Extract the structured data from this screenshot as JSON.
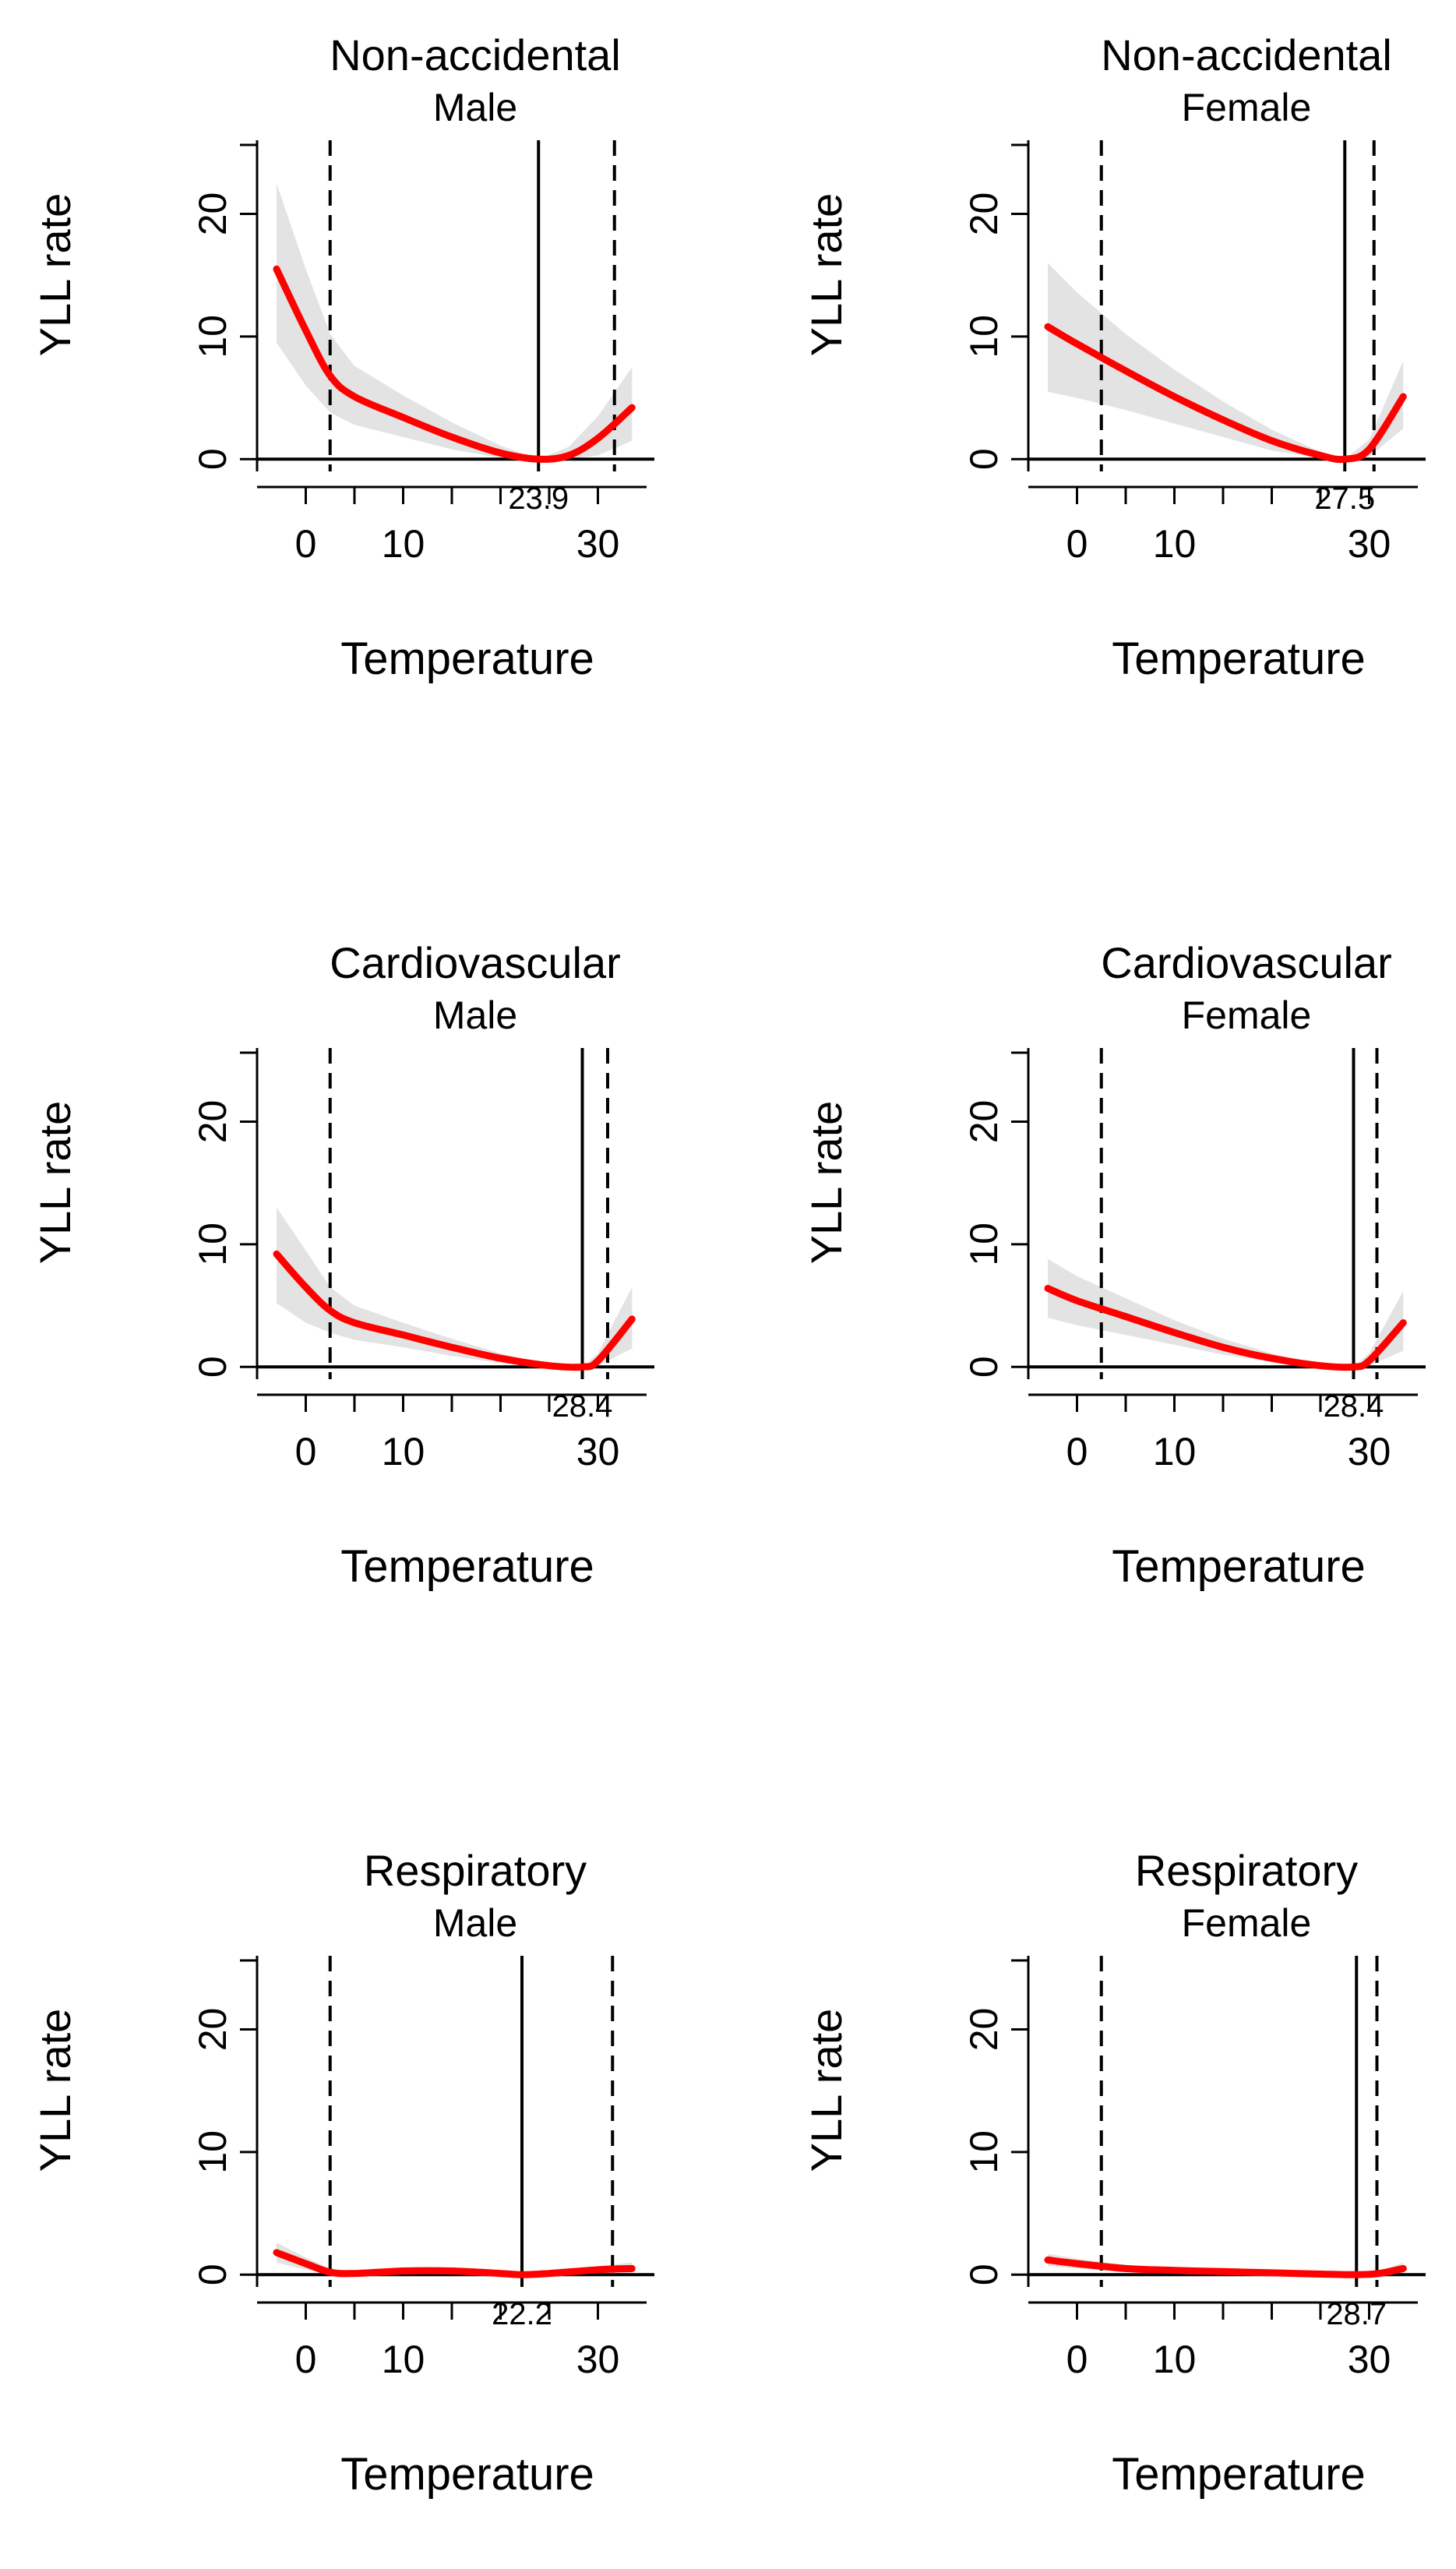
{
  "chart_data": [
    {
      "type": "line",
      "title": "Non-accidental",
      "subtitle": "Male",
      "xlabel": "Temperature",
      "ylabel": "YLL rate",
      "xticks": [
        0,
        10,
        30
      ],
      "yticks": [
        0,
        10,
        20
      ],
      "xlim": [
        -5,
        35
      ],
      "ylim": [
        -1,
        26
      ],
      "mmt": 23.9,
      "mmt_label": "23.9",
      "cutoffs": [
        2.5,
        31.7
      ],
      "curve": {
        "x": [
          -3,
          0,
          2.5,
          5,
          10,
          15,
          20,
          23.9,
          27,
          30,
          33.5
        ],
        "y": [
          15.5,
          10.5,
          6.8,
          5.1,
          3.4,
          1.8,
          0.5,
          0,
          0.3,
          1.7,
          4.2
        ]
      },
      "ci_upper": [
        22.5,
        15.5,
        10.2,
        7.6,
        5.2,
        3.0,
        1.1,
        0,
        1.0,
        3.5,
        7.5
      ],
      "ci_lower": [
        9.5,
        6.0,
        3.8,
        2.8,
        1.8,
        0.8,
        0.1,
        0,
        0.0,
        0.3,
        1.5
      ]
    },
    {
      "type": "line",
      "title": "Non-accidental",
      "subtitle": "Female",
      "xlabel": "Temperature",
      "ylabel": "YLL rate",
      "xticks": [
        0,
        10,
        30
      ],
      "yticks": [
        0,
        10,
        20
      ],
      "xlim": [
        -5,
        35
      ],
      "ylim": [
        -1,
        26
      ],
      "mmt": 27.5,
      "mmt_label": "27.5",
      "cutoffs": [
        2.5,
        30.5
      ],
      "curve": {
        "x": [
          -3,
          0,
          5,
          10,
          15,
          20,
          25,
          27.5,
          30,
          33.5
        ],
        "y": [
          10.8,
          9.4,
          7.2,
          5.1,
          3.2,
          1.5,
          0.3,
          0,
          0.8,
          5.1
        ]
      },
      "ci_upper": [
        16.0,
        13.6,
        10.2,
        7.3,
        4.7,
        2.4,
        0.6,
        0,
        1.6,
        8.0
      ],
      "ci_lower": [
        5.5,
        5.0,
        4.0,
        2.9,
        1.8,
        0.7,
        0.1,
        0,
        0.2,
        2.5
      ]
    },
    {
      "type": "line",
      "title": "Cardiovascular",
      "subtitle": "Male",
      "xlabel": "Temperature",
      "ylabel": "YLL rate",
      "xticks": [
        0,
        10,
        30
      ],
      "yticks": [
        0,
        10,
        20
      ],
      "xlim": [
        -5,
        35
      ],
      "ylim": [
        -1,
        26
      ],
      "mmt": 28.4,
      "mmt_label": "28.4",
      "cutoffs": [
        2.5,
        31.0
      ],
      "curve": {
        "x": [
          -3,
          0,
          2.5,
          5,
          10,
          15,
          20,
          25,
          28.4,
          30,
          33.5
        ],
        "y": [
          9.2,
          6.5,
          4.6,
          3.6,
          2.6,
          1.6,
          0.7,
          0.1,
          0,
          0.5,
          3.9
        ]
      },
      "ci_upper": [
        13.0,
        9.5,
        6.5,
        5.0,
        3.6,
        2.3,
        1.1,
        0.2,
        0,
        1.1,
        6.5
      ],
      "ci_lower": [
        5.2,
        3.6,
        2.8,
        2.2,
        1.6,
        0.9,
        0.3,
        0.0,
        0,
        0.1,
        1.5
      ]
    },
    {
      "type": "line",
      "title": "Cardiovascular",
      "subtitle": "Female",
      "xlabel": "Temperature",
      "ylabel": "YLL rate",
      "xticks": [
        0,
        10,
        30
      ],
      "yticks": [
        0,
        10,
        20
      ],
      "xlim": [
        -5,
        35
      ],
      "ylim": [
        -1,
        26
      ],
      "mmt": 28.4,
      "mmt_label": "28.4",
      "cutoffs": [
        2.5,
        30.8
      ],
      "curve": {
        "x": [
          -3,
          0,
          5,
          10,
          15,
          20,
          25,
          28.4,
          30,
          33.5
        ],
        "y": [
          6.4,
          5.4,
          4.1,
          2.8,
          1.6,
          0.7,
          0.1,
          0,
          0.5,
          3.6
        ]
      },
      "ci_upper": [
        8.8,
        7.4,
        5.6,
        3.8,
        2.3,
        1.1,
        0.2,
        0,
        1.1,
        6.2
      ],
      "ci_lower": [
        4.0,
        3.4,
        2.6,
        1.8,
        1.0,
        0.4,
        0.0,
        0,
        0.1,
        1.3
      ]
    },
    {
      "type": "line",
      "title": "Respiratory",
      "subtitle": "Male",
      "xlabel": "Temperature",
      "ylabel": "YLL rate",
      "xticks": [
        0,
        10,
        30
      ],
      "yticks": [
        0,
        10,
        20
      ],
      "xlim": [
        -5,
        35
      ],
      "ylim": [
        -1,
        26
      ],
      "mmt": 22.2,
      "mmt_label": "22.2",
      "cutoffs": [
        2.5,
        31.5
      ],
      "curve": {
        "x": [
          -3,
          0,
          2.5,
          5,
          10,
          15,
          20,
          22.2,
          25,
          30,
          33.5
        ],
        "y": [
          1.8,
          0.9,
          0.2,
          0.1,
          0.3,
          0.3,
          0.1,
          0,
          0.1,
          0.4,
          0.5
        ]
      },
      "ci_upper": [
        2.6,
        1.4,
        0.5,
        0.3,
        0.5,
        0.5,
        0.2,
        0,
        0.2,
        0.7,
        1.0
      ],
      "ci_lower": [
        1.0,
        0.4,
        0.0,
        0.0,
        0.1,
        0.1,
        0.0,
        0,
        0.0,
        0.1,
        0.1
      ]
    },
    {
      "type": "line",
      "title": "Respiratory",
      "subtitle": "Female",
      "xlabel": "Temperature",
      "ylabel": "YLL rate",
      "xticks": [
        0,
        10,
        30
      ],
      "yticks": [
        0,
        10,
        20
      ],
      "xlim": [
        -5,
        35
      ],
      "ylim": [
        -1,
        26
      ],
      "mmt": 28.7,
      "mmt_label": "28.7",
      "cutoffs": [
        2.5,
        30.8
      ],
      "curve": {
        "x": [
          -3,
          0,
          5,
          10,
          15,
          20,
          25,
          28.7,
          31,
          33.5
        ],
        "y": [
          1.2,
          0.9,
          0.5,
          0.35,
          0.25,
          0.15,
          0.05,
          0,
          0.1,
          0.5
        ]
      },
      "ci_upper": [
        1.7,
        1.3,
        0.8,
        0.55,
        0.4,
        0.25,
        0.1,
        0,
        0.25,
        1.0
      ],
      "ci_lower": [
        0.7,
        0.5,
        0.3,
        0.2,
        0.1,
        0.05,
        0.0,
        0,
        0.0,
        0.1
      ]
    }
  ]
}
